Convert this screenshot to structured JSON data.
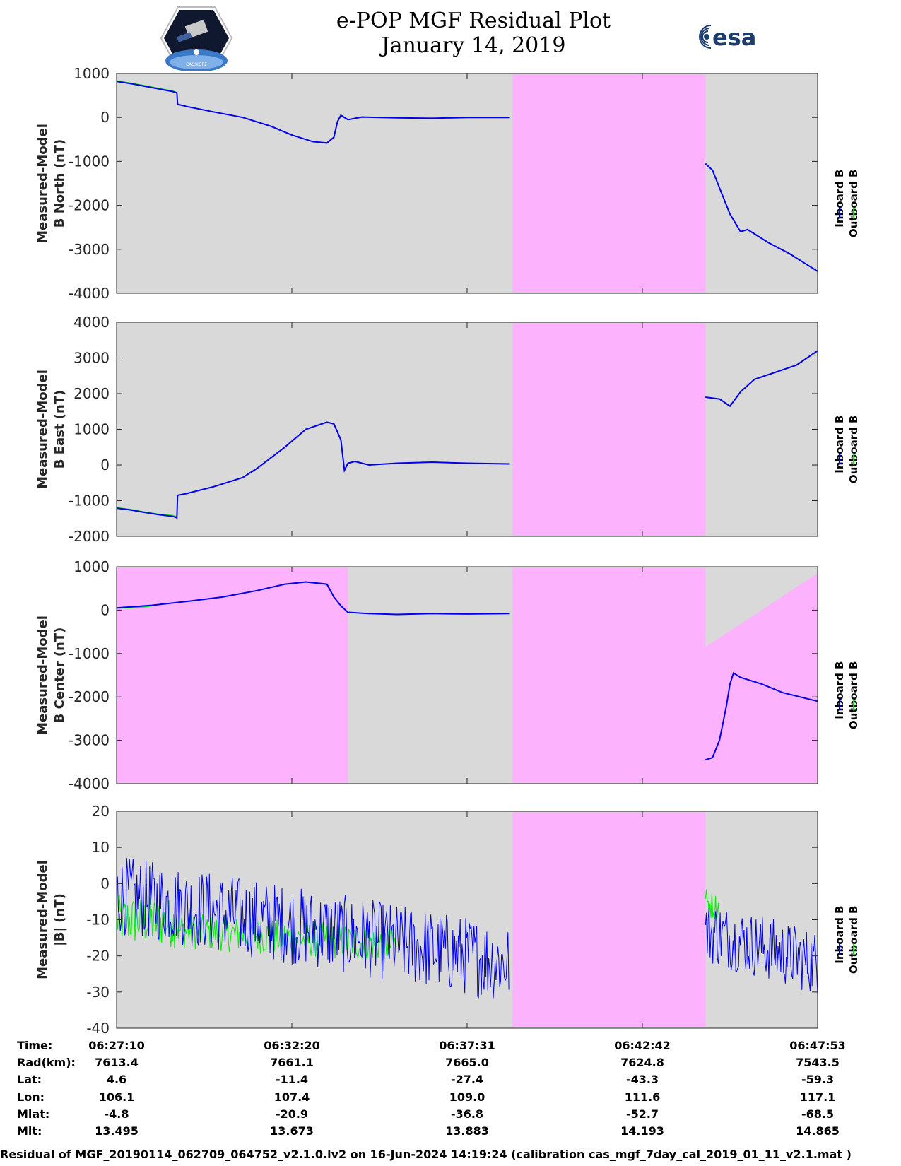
{
  "header": {
    "title_line1": "e-POP MGF Residual Plot",
    "title_line2": "January 14, 2019",
    "logo_left_text": "CASSIOPE",
    "logo_right_text": "esa"
  },
  "colors": {
    "inboard": "#0000ee",
    "outboard": "#00ee00",
    "background": "#d9d9d9",
    "flagged": "#fdb2fd"
  },
  "chart_data": [
    {
      "type": "line",
      "ylabel": [
        "Measured-Model",
        "B North (nT)"
      ],
      "ylim": [
        -4000,
        1000
      ],
      "yticks": [
        1000,
        0,
        -1000,
        -2000,
        -3000,
        -4000
      ],
      "legend": [
        "Inboard B",
        "Outboard B"
      ],
      "legend_placement": "right",
      "x_range": [
        0,
        1.0
      ],
      "flagged_regions": [
        [
          0.565,
          0.84
        ]
      ],
      "series": [
        {
          "name": "Outboard B",
          "x": [
            0,
            0.02,
            0.04,
            0.06,
            0.08,
            0.086
          ],
          "values": [
            830,
            780,
            720,
            660,
            600,
            560
          ]
        },
        {
          "name": "Inboard B",
          "x": [
            0,
            0.02,
            0.04,
            0.06,
            0.08,
            0.086,
            0.087,
            0.1,
            0.14,
            0.18,
            0.22,
            0.25,
            0.28,
            0.3,
            0.31,
            0.315,
            0.32,
            0.33,
            0.35,
            0.4,
            0.45,
            0.5,
            0.56
          ],
          "values": [
            820,
            770,
            710,
            650,
            590,
            560,
            300,
            250,
            120,
            0,
            -200,
            -400,
            -550,
            -580,
            -450,
            -100,
            50,
            -50,
            10,
            -10,
            -20,
            0,
            0
          ]
        },
        {
          "name": "Inboard B",
          "x": [
            0.84,
            0.85,
            0.86,
            0.875,
            0.89,
            0.9,
            0.91,
            0.93,
            0.96,
            1.0
          ],
          "values": [
            -1050,
            -1200,
            -1600,
            -2200,
            -2600,
            -2550,
            -2650,
            -2850,
            -3100,
            -3500
          ]
        }
      ]
    },
    {
      "type": "line",
      "ylabel": [
        "Measured-Model",
        "B East (nT)"
      ],
      "ylim": [
        -2000,
        4000
      ],
      "yticks": [
        4000,
        3000,
        2000,
        1000,
        0,
        -1000,
        -2000
      ],
      "legend": [
        "Inboard B",
        "Outboard B"
      ],
      "legend_placement": "right",
      "x_range": [
        0,
        1.0
      ],
      "flagged_regions": [
        [
          0.565,
          0.84
        ]
      ],
      "series": [
        {
          "name": "Outboard B",
          "x": [
            0,
            0.02,
            0.04,
            0.06,
            0.08,
            0.086
          ],
          "values": [
            -1200,
            -1250,
            -1320,
            -1380,
            -1420,
            -1450
          ]
        },
        {
          "name": "Inboard B",
          "x": [
            0,
            0.02,
            0.04,
            0.06,
            0.08,
            0.086,
            0.087,
            0.1,
            0.14,
            0.18,
            0.2,
            0.24,
            0.27,
            0.3,
            0.31,
            0.32,
            0.325,
            0.33,
            0.34,
            0.36,
            0.4,
            0.45,
            0.5,
            0.56
          ],
          "values": [
            -1210,
            -1260,
            -1330,
            -1390,
            -1440,
            -1480,
            -850,
            -800,
            -600,
            -350,
            -100,
            500,
            1000,
            1200,
            1150,
            700,
            -150,
            50,
            100,
            0,
            50,
            80,
            50,
            30
          ]
        },
        {
          "name": "Inboard B",
          "x": [
            0.84,
            0.86,
            0.875,
            0.89,
            0.91,
            0.94,
            0.97,
            1.0
          ],
          "values": [
            1900,
            1850,
            1650,
            2050,
            2400,
            2600,
            2800,
            3200
          ]
        }
      ]
    },
    {
      "type": "line",
      "ylabel": [
        "Measured-Model",
        "B Center (nT)"
      ],
      "ylim": [
        -4000,
        1000
      ],
      "yticks": [
        1000,
        0,
        -1000,
        -2000,
        -3000,
        -4000
      ],
      "legend": [
        "Inboard B",
        "Outboard B"
      ],
      "legend_placement": "right",
      "x_range": [
        0,
        1.0
      ],
      "flagged_regions": [
        [
          0,
          0.33
        ],
        [
          0.565,
          0.84
        ]
      ],
      "flagged_wedge": {
        "x": [
          0.84,
          1.0
        ],
        "upper": [
          -850,
          850
        ]
      },
      "series": [
        {
          "name": "Outboard B",
          "x": [
            0,
            0.02,
            0.04,
            0.05
          ],
          "values": [
            50,
            60,
            80,
            100
          ]
        },
        {
          "name": "Inboard B",
          "x": [
            0,
            0.05,
            0.1,
            0.15,
            0.2,
            0.24,
            0.27,
            0.3,
            0.31,
            0.32,
            0.33,
            0.36,
            0.4,
            0.45,
            0.5,
            0.56
          ],
          "values": [
            50,
            110,
            200,
            300,
            450,
            600,
            650,
            600,
            300,
            100,
            -50,
            -80,
            -100,
            -80,
            -90,
            -80
          ]
        },
        {
          "name": "Inboard B",
          "x": [
            0.84,
            0.85,
            0.86,
            0.87,
            0.875,
            0.88,
            0.89,
            0.92,
            0.95,
            1.0
          ],
          "values": [
            -3450,
            -3400,
            -3000,
            -2200,
            -1700,
            -1450,
            -1550,
            -1700,
            -1900,
            -2100
          ]
        }
      ]
    },
    {
      "type": "line",
      "ylabel": [
        "Measured-Model",
        "|B| (nT)"
      ],
      "ylim": [
        -40,
        20
      ],
      "yticks": [
        20,
        10,
        0,
        -10,
        -20,
        -30,
        -40
      ],
      "legend": [
        "Inboard B",
        "Outboard B"
      ],
      "legend_placement": "right",
      "x_range": [
        0,
        1.0
      ],
      "flagged_regions": [
        [
          0.565,
          0.84
        ]
      ],
      "noise_series": [
        {
          "name": "Outboard B",
          "x_range": [
            0,
            0.09
          ],
          "center": [
            -10,
            -11
          ],
          "amplitude": 7
        },
        {
          "name": "Outboard B",
          "x_range": [
            0.09,
            0.4
          ],
          "center": [
            -13,
            -17
          ],
          "amplitude": 5
        },
        {
          "name": "Inboard B",
          "x_range": [
            0,
            0.56
          ],
          "center": [
            -3,
            -22
          ],
          "amplitude": 11
        },
        {
          "name": "Outboard B",
          "x_range": [
            0.84,
            0.86
          ],
          "center": [
            -5,
            -7
          ],
          "amplitude": 4
        },
        {
          "name": "Inboard B",
          "x_range": [
            0.84,
            1.0
          ],
          "center": [
            -13,
            -22
          ],
          "amplitude": 9
        }
      ]
    }
  ],
  "ephemeris": {
    "labels": [
      "Time:",
      "Rad(km):",
      "Lat:",
      "Lon:",
      "Mlat:",
      "Mlt:"
    ],
    "columns": [
      [
        "06:27:10",
        "7613.4",
        "4.6",
        "106.1",
        "-4.8",
        "13.495"
      ],
      [
        "06:32:20",
        "7661.1",
        "-11.4",
        "107.4",
        "-20.9",
        "13.673"
      ],
      [
        "06:37:31",
        "7665.0",
        "-27.4",
        "109.0",
        "-36.8",
        "13.883"
      ],
      [
        "06:42:42",
        "7624.8",
        "-43.3",
        "111.6",
        "-52.7",
        "14.193"
      ],
      [
        "06:47:53",
        "7543.5",
        "-59.3",
        "117.1",
        "-68.5",
        "14.865"
      ]
    ]
  },
  "footer": "Residual of MGF_20190114_062709_064752_v2.1.0.lv2 on 16-Jun-2024 14:19:24 (calibration cas_mgf_7day_cal_2019_01_11_v2.1.mat )"
}
